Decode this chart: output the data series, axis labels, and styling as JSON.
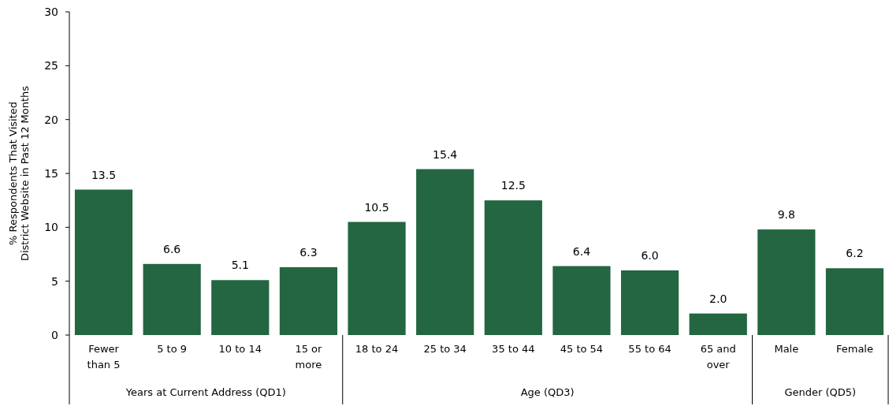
{
  "chart_data": {
    "type": "bar",
    "ylabel": "% Respondents That Visited District Website in Past 12 Months",
    "categories": [
      "Fewer than 5",
      "5 to 9",
      "10 to 14",
      "15 or more",
      "18 to 24",
      "25 to 34",
      "35 to 44",
      "45 to 54",
      "55 to 64",
      "65 and over",
      "Male",
      "Female"
    ],
    "values": [
      13.5,
      6.6,
      5.1,
      6.3,
      10.5,
      15.4,
      12.5,
      6.4,
      6.0,
      2.0,
      9.8,
      6.2
    ],
    "value_labels": [
      "13.5",
      "6.6",
      "5.1",
      "6.3",
      "10.5",
      "15.4",
      "12.5",
      "6.4",
      "6.0",
      "2.0",
      "9.8",
      "6.2"
    ],
    "color": "#236641",
    "ylim": [
      0,
      30
    ],
    "yticks": [
      0,
      5,
      10,
      15,
      20,
      25,
      30
    ],
    "grid": false,
    "annotations": [
      "Years at Current Address (QD1)",
      "Age (QD3)",
      "Gender (QD5)"
    ]
  }
}
